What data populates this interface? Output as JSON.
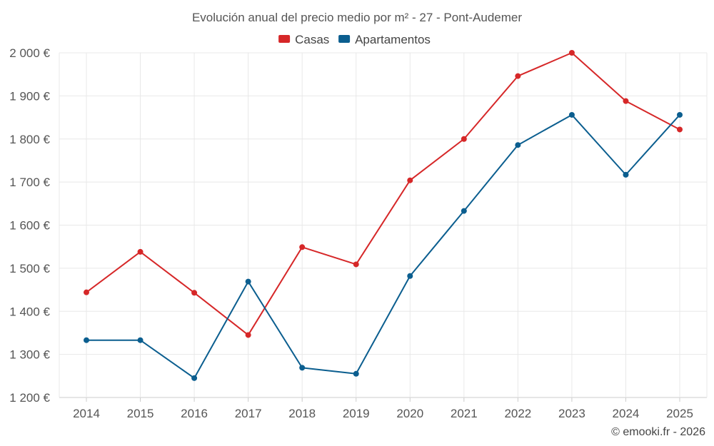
{
  "chart_data": {
    "type": "line",
    "title": "Evolución anual del precio medio por m² - 27 - Pont-Audemer",
    "categories": [
      "2014",
      "2015",
      "2016",
      "2017",
      "2018",
      "2019",
      "2020",
      "2021",
      "2022",
      "2023",
      "2024",
      "2025"
    ],
    "series": [
      {
        "name": "Casas",
        "color": "#d62728",
        "values": [
          1444,
          1538,
          1443,
          1345,
          1549,
          1509,
          1704,
          1800,
          1946,
          2000,
          1888,
          1822
        ]
      },
      {
        "name": "Apartamentos",
        "color": "#0b5e8f",
        "values": [
          1333,
          1333,
          1245,
          1469,
          1269,
          1255,
          1482,
          1633,
          1786,
          1856,
          1717,
          1856
        ]
      }
    ],
    "ylim": [
      1200,
      2000
    ],
    "yticks": [
      1200,
      1300,
      1400,
      1500,
      1600,
      1700,
      1800,
      1900,
      2000
    ],
    "ytick_labels": [
      "1 200 €",
      "1 300 €",
      "1 400 €",
      "1 500 €",
      "1 600 €",
      "1 700 €",
      "1 800 €",
      "1 900 €",
      "2 000 €"
    ],
    "xlabel": "",
    "ylabel": "",
    "grid": true,
    "legend_position": "top-center"
  },
  "credit": "© emooki.fr - 2026"
}
